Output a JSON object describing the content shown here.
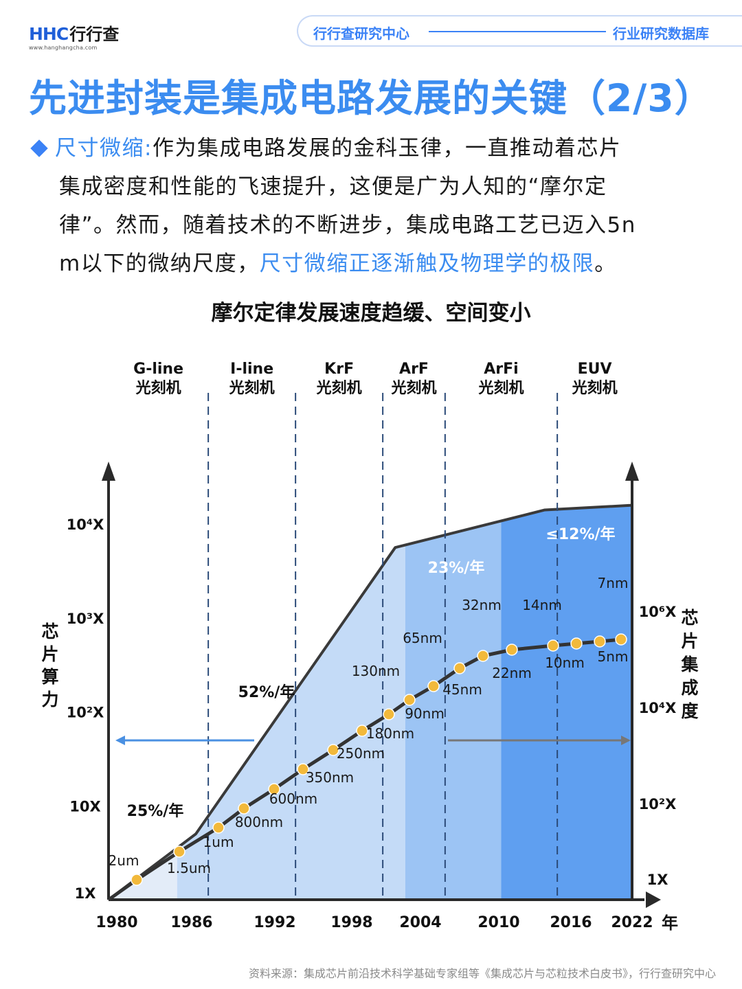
{
  "header": {
    "logo_mark": "HHC",
    "logo_cn": "行行查",
    "logo_url": "www.hanghangcha.com",
    "nav_left": "行行查研究中心",
    "nav_right": "行业研究数据库"
  },
  "title": "先进封装是集成电路发展的关键（2/3）",
  "intro": {
    "lead": "尺寸微缩:",
    "line1_rest": "作为集成电路发展的金科玉律，一直推动着芯片",
    "line2": "集成密度和性能的飞速提升，这便是广为人知的“摩尔定",
    "line3": "律”。然而，随着技术的不断进步，集成电路工艺已迈入5n",
    "line4_start": "m以下的微纳尺度，",
    "line4_highlight": "尺寸微缩正逐渐触及物理学的极限",
    "line4_end": "。"
  },
  "source": "资料来源：集成芯片前沿技术科学基础专家组等《集成芯片与芯粒技术白皮书》，行行查研究中心",
  "colors": {
    "zone1": "#e3ecf8",
    "zone2": "#cfe0f7",
    "zone3": "#c4dbf7",
    "zone4": "#9cc4f4",
    "zone5": "#7cb1f2",
    "zone6": "#5f9ff0",
    "outline": "#3a3a3a",
    "dot": "#f2b93b",
    "dash": "#2b4a78",
    "left_arrow": "#4a90e2",
    "right_arrow": "#777777",
    "title_blue": "#3b8cf0"
  },
  "chart_data": {
    "type": "area",
    "title": "摩尔定律发展速度趋缓、空间变小",
    "x_label": "年",
    "x_ticks": [
      "1980",
      "1986",
      "1992",
      "1998",
      "2004",
      "2010",
      "2016",
      "2022"
    ],
    "x_range": [
      1980,
      2022
    ],
    "y_left_label": "芯片算力",
    "y_left_ticks": [
      "1X",
      "10X",
      "10²X",
      "10³X",
      "10⁴X"
    ],
    "y_left_range_log10": [
      0,
      4
    ],
    "y_right_label": "芯片集成度",
    "y_right_ticks": [
      "1X",
      "10²X",
      "10⁴X",
      "10⁶X"
    ],
    "y_right_range_log10": [
      0,
      6
    ],
    "eras": [
      {
        "name": "G-line",
        "sub": "光刻机",
        "start": 1980,
        "end": 1988
      },
      {
        "name": "I-line",
        "sub": "光刻机",
        "start": 1988,
        "end": 1995
      },
      {
        "name": "KrF",
        "sub": "光刻机",
        "start": 1995,
        "end": 2002
      },
      {
        "name": "ArF",
        "sub": "光刻机",
        "start": 2002,
        "end": 2007
      },
      {
        "name": "ArFi",
        "sub": "光刻机",
        "start": 2007,
        "end": 2016
      },
      {
        "name": "EUV",
        "sub": "光刻机",
        "start": 2016,
        "end": 2022
      }
    ],
    "performance_series": {
      "name": "芯片算力",
      "x": [
        1980,
        1987,
        2003,
        2015,
        2022
      ],
      "y_log10": [
        0,
        0.7,
        3.75,
        4.15,
        4.2
      ]
    },
    "growth_rates": [
      {
        "text": "25%/年",
        "x": 1983,
        "y_log10": 0.8
      },
      {
        "text": "52%/年",
        "x": 1992,
        "y_log10": 2.1
      },
      {
        "text": "23%/年",
        "x": 2007,
        "y_log10": 3.5
      },
      {
        "text": "≤12%/年",
        "x": 2020,
        "y_log10": 3.9
      }
    ],
    "process_nodes": {
      "name": "芯片集成度",
      "points": [
        {
          "label": "2um",
          "x": 1982,
          "y_log10": 0.45
        },
        {
          "label": "1.5um",
          "x": 1985,
          "y_log10": 0.86
        },
        {
          "label": "1um",
          "x": 1988,
          "y_log10": 1.26
        },
        {
          "label": "800nm",
          "x": 1990,
          "y_log10": 1.48
        },
        {
          "label": "600nm",
          "x": 1992,
          "y_log10": 1.98
        },
        {
          "label": "350nm",
          "x": 1995,
          "y_log10": 2.35
        },
        {
          "label": "250nm",
          "x": 1997,
          "y_log10": 2.7
        },
        {
          "label": "180nm",
          "x": 1999,
          "y_log10": 3.0
        },
        {
          "label": "130nm",
          "x": 2001,
          "y_log10": 3.2
        },
        {
          "label": "90nm",
          "x": 2003,
          "y_log10": 3.4
        },
        {
          "label": "65nm",
          "x": 2004,
          "y_log10": 4.2
        },
        {
          "label": "45nm",
          "x": 2006,
          "y_log10": 3.8
        },
        {
          "label": "32nm",
          "x": 2008,
          "y_log10": 4.2
        },
        {
          "label": "22nm",
          "x": 2010,
          "y_log10": 4.4
        },
        {
          "label": "14nm",
          "x": 2012,
          "y_log10": 4.65
        },
        {
          "label": "10nm",
          "x": 2016,
          "y_log10": 4.7
        },
        {
          "label": "7nm",
          "x": 2017,
          "y_log10": 4.85
        },
        {
          "label": "5nm",
          "x": 2020,
          "y_log10": 4.9
        }
      ]
    }
  }
}
